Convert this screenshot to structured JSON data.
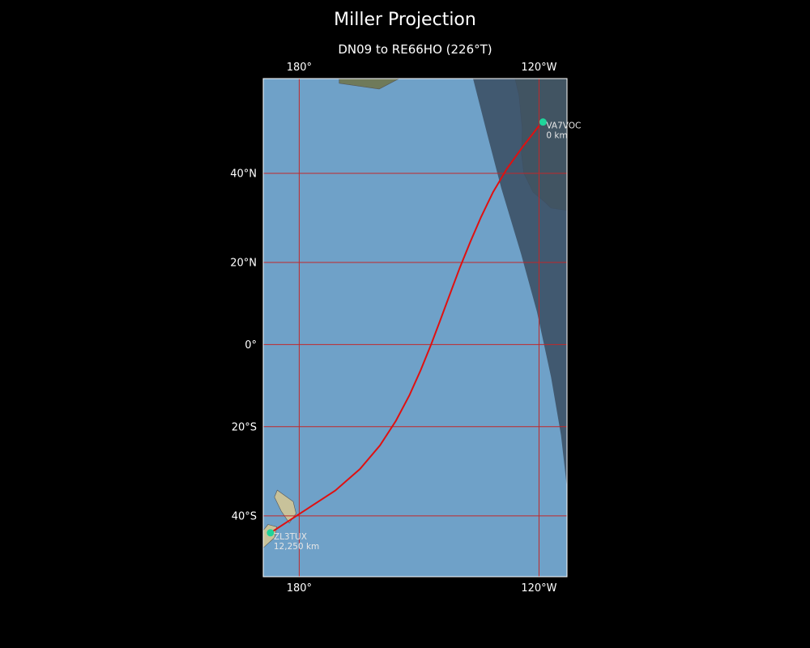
{
  "title": "Miller Projection",
  "subtitle": "DN09 to RE66HO (226°T)",
  "map": {
    "projection": "Miller",
    "lon_range": [
      -189,
      -113
    ],
    "lat_range": [
      -52,
      58
    ],
    "lon_ticks": [
      {
        "lon": -180,
        "label": "180°"
      },
      {
        "lon": -120,
        "label": "120°W"
      }
    ],
    "lat_ticks": [
      {
        "lat": 40,
        "label": "40°N"
      },
      {
        "lat": 20,
        "label": "20°N"
      },
      {
        "lat": 0,
        "label": "0°"
      },
      {
        "lat": -20,
        "label": "20°S"
      },
      {
        "lat": -40,
        "label": "40°S"
      }
    ],
    "grid_color": "#c0282a",
    "path_color": "#e01010",
    "marker_color": "#1fd49a",
    "ocean_color": "#6fa1c8",
    "night_color": "#3b4e63",
    "land_color": "#6f7a5a"
  },
  "stations": [
    {
      "call": "VA7VOC",
      "distance": "0 km",
      "lon": -119.0,
      "lat": 50.2
    },
    {
      "call": "ZL3TUX",
      "distance": "12,250 km",
      "lon": -187.2,
      "lat": -43.5
    }
  ],
  "path": [
    [
      -120.0,
      49.5
    ],
    [
      -124.0,
      45.5
    ],
    [
      -128.0,
      41.0
    ],
    [
      -131.5,
      36.0
    ],
    [
      -134.5,
      30.5
    ],
    [
      -137.2,
      24.8
    ],
    [
      -139.8,
      18.8
    ],
    [
      -142.2,
      12.6
    ],
    [
      -144.6,
      6.3
    ],
    [
      -147.0,
      0.0
    ],
    [
      -149.6,
      -6.3
    ],
    [
      -152.4,
      -12.4
    ],
    [
      -155.8,
      -18.6
    ],
    [
      -159.8,
      -24.4
    ],
    [
      -164.8,
      -29.8
    ],
    [
      -171.0,
      -34.6
    ],
    [
      -178.5,
      -38.8
    ],
    [
      -187.2,
      -43.5
    ]
  ]
}
